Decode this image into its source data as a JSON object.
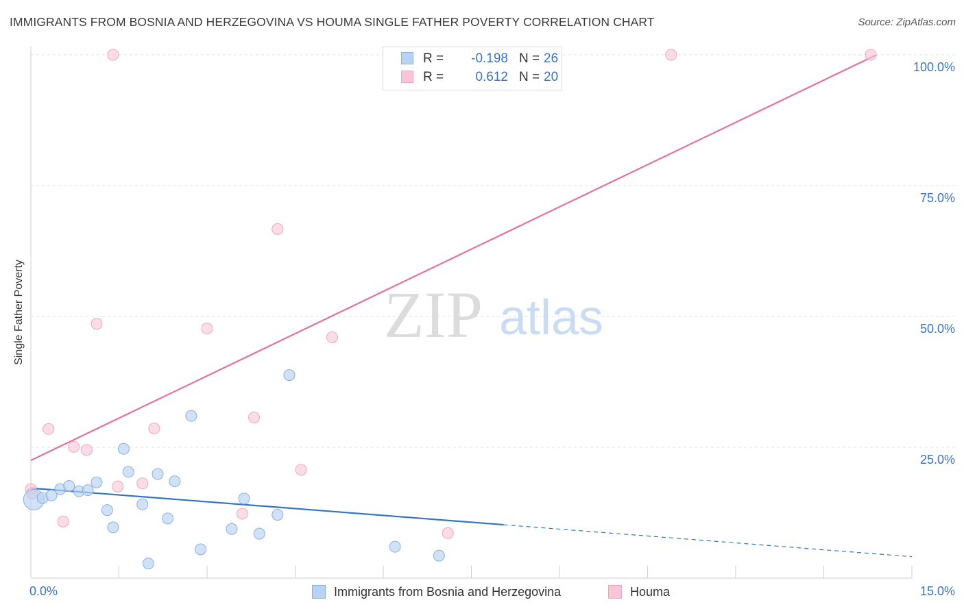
{
  "title": "IMMIGRANTS FROM BOSNIA AND HERZEGOVINA VS HOUMA SINGLE FATHER POVERTY CORRELATION CHART",
  "source": "Source: ZipAtlas.com",
  "watermark": {
    "zip": "ZIP",
    "atlas": "atlas"
  },
  "legend_top": [
    {
      "r_label": "R =",
      "r_value": "-0.198",
      "n_label": "N =",
      "n_value": "26"
    },
    {
      "r_label": "R =",
      "r_value": "0.612",
      "n_label": "N =",
      "n_value": "20"
    }
  ],
  "colors": {
    "blue_fill": "#b8d3f3",
    "blue_stroke": "#8ab0e0",
    "blue_line": "#3074c8",
    "pink_fill": "#f8c6d6",
    "pink_stroke": "#eea6bc",
    "pink_line": "#e2729a",
    "axis_text": "#3a72c4",
    "grid": "#dddddd"
  },
  "chart_data": {
    "type": "scatter",
    "title": "IMMIGRANTS FROM BOSNIA AND HERZEGOVINA VS HOUMA SINGLE FATHER POVERTY CORRELATION CHART",
    "xlabel": "",
    "ylabel": "Single Father Poverty",
    "xlim": [
      0,
      15
    ],
    "ylim": [
      0,
      100
    ],
    "x_ticks": [
      {
        "value": 0,
        "label": "0.0%"
      },
      {
        "value": 15,
        "label": "15.0%"
      }
    ],
    "y_ticks": [
      {
        "value": 25,
        "label": "25.0%"
      },
      {
        "value": 50,
        "label": "50.0%"
      },
      {
        "value": 75,
        "label": "75.0%"
      },
      {
        "value": 100,
        "label": "100.0%"
      }
    ],
    "series": [
      {
        "name": "Immigrants from Bosnia and Herzegovina",
        "color": "blue",
        "r": -0.198,
        "n": 26,
        "points": [
          {
            "x": 0.05,
            "y": 15.0,
            "big": true
          },
          {
            "x": 0.2,
            "y": 15.3
          },
          {
            "x": 0.35,
            "y": 15.8
          },
          {
            "x": 0.5,
            "y": 17.0
          },
          {
            "x": 0.65,
            "y": 17.6
          },
          {
            "x": 0.82,
            "y": 16.6
          },
          {
            "x": 0.97,
            "y": 16.8
          },
          {
            "x": 1.12,
            "y": 18.3
          },
          {
            "x": 1.3,
            "y": 13.0
          },
          {
            "x": 1.4,
            "y": 9.7
          },
          {
            "x": 1.58,
            "y": 24.7
          },
          {
            "x": 1.66,
            "y": 20.3
          },
          {
            "x": 1.9,
            "y": 14.1
          },
          {
            "x": 2.0,
            "y": 2.8
          },
          {
            "x": 2.16,
            "y": 19.9
          },
          {
            "x": 2.33,
            "y": 11.4
          },
          {
            "x": 2.45,
            "y": 18.5
          },
          {
            "x": 2.73,
            "y": 31.0
          },
          {
            "x": 2.89,
            "y": 5.5
          },
          {
            "x": 3.42,
            "y": 9.4
          },
          {
            "x": 3.63,
            "y": 15.2
          },
          {
            "x": 3.89,
            "y": 8.5
          },
          {
            "x": 4.2,
            "y": 12.1
          },
          {
            "x": 4.4,
            "y": 38.8
          },
          {
            "x": 6.2,
            "y": 6.0
          },
          {
            "x": 6.95,
            "y": 4.3
          }
        ],
        "trend": {
          "x1": 0,
          "y1": 17.2,
          "x2": 8.05,
          "y2": 10.2,
          "dash_x2": 15,
          "dash_y2": 4.1
        }
      },
      {
        "name": "Houma",
        "color": "pink",
        "r": 0.612,
        "n": 20,
        "points": [
          {
            "x": 0.0,
            "y": 17.0
          },
          {
            "x": 0.02,
            "y": 16.2
          },
          {
            "x": 0.3,
            "y": 28.5
          },
          {
            "x": 0.55,
            "y": 10.8
          },
          {
            "x": 0.73,
            "y": 25.1
          },
          {
            "x": 0.95,
            "y": 24.5
          },
          {
            "x": 1.12,
            "y": 48.6
          },
          {
            "x": 1.4,
            "y": 100.0
          },
          {
            "x": 1.48,
            "y": 17.5
          },
          {
            "x": 1.9,
            "y": 18.1
          },
          {
            "x": 2.1,
            "y": 28.6
          },
          {
            "x": 3.0,
            "y": 47.7
          },
          {
            "x": 3.6,
            "y": 12.3
          },
          {
            "x": 3.8,
            "y": 30.7
          },
          {
            "x": 4.2,
            "y": 66.7
          },
          {
            "x": 4.6,
            "y": 20.7
          },
          {
            "x": 5.13,
            "y": 46.0
          },
          {
            "x": 7.1,
            "y": 8.6
          },
          {
            "x": 10.9,
            "y": 100.0
          },
          {
            "x": 14.3,
            "y": 100.0
          }
        ],
        "trend": {
          "x1": 0,
          "y1": 22.5,
          "x2": 14.4,
          "y2": 100.0
        }
      }
    ]
  }
}
